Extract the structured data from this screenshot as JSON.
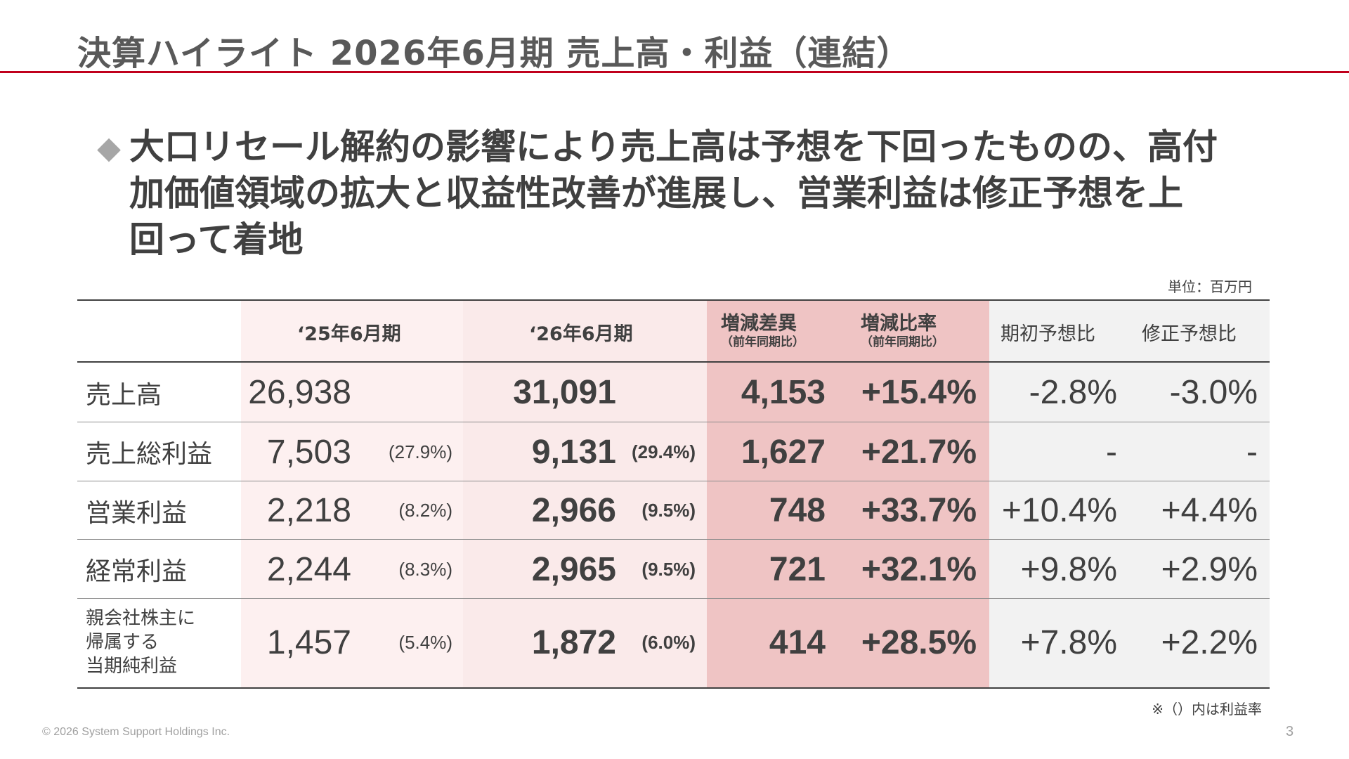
{
  "slide": {
    "title": "決算ハイライト 2026年6月期 売上高・利益（連結）",
    "headline_bullet": "◆",
    "headline_line1": "大口リセール解約の影響により売上高は予想を下回ったものの、高付",
    "headline_line2": "加価値領域の拡大と収益性改善が進展し、営業利益は修正予想を上",
    "headline_line3": "回って着地",
    "unit_note": "単位：百万円",
    "foot_note": "※（）内は利益率",
    "copyright": "© 2026 System Support Holdings Inc.",
    "page_number": "3",
    "accent_color": "#c0001c"
  },
  "table": {
    "headers": {
      "fy25": "‘25年6月期",
      "fy26": "‘26年6月期",
      "diff": "増減差異",
      "diff_sub": "（前年同期比）",
      "ratio": "増減比率",
      "ratio_sub": "（前年同期比）",
      "vs_initial": "期初予想比",
      "vs_revised": "修正予想比"
    },
    "rows": [
      {
        "label": "売上高",
        "fy25": "26,938",
        "fy25_margin": "",
        "fy26": "31,091",
        "fy26_margin": "",
        "diff": "4,153",
        "ratio": "+15.4%",
        "vs_initial": "-2.8%",
        "vs_revised": "-3.0%"
      },
      {
        "label": "売上総利益",
        "fy25": "7,503",
        "fy25_margin": "(27.9%)",
        "fy26": "9,131",
        "fy26_margin": "(29.4%)",
        "diff": "1,627",
        "ratio": "+21.7%",
        "vs_initial": "-",
        "vs_revised": "-"
      },
      {
        "label": "営業利益",
        "fy25": "2,218",
        "fy25_margin": "(8.2%)",
        "fy26": "2,966",
        "fy26_margin": "(9.5%)",
        "diff": "748",
        "ratio": "+33.7%",
        "vs_initial": "+10.4%",
        "vs_revised": "+4.4%"
      },
      {
        "label": "経常利益",
        "fy25": "2,244",
        "fy25_margin": "(8.3%)",
        "fy26": "2,965",
        "fy26_margin": "(9.5%)",
        "diff": "721",
        "ratio": "+32.1%",
        "vs_initial": "+9.8%",
        "vs_revised": "+2.9%"
      },
      {
        "label_line1": "親会社株主に",
        "label_line2": "帰属する",
        "label_line3": "当期純利益",
        "fy25": "1,457",
        "fy25_margin": "(5.4%)",
        "fy26": "1,872",
        "fy26_margin": "(6.0%)",
        "diff": "414",
        "ratio": "+28.5%",
        "vs_initial": "+7.8%",
        "vs_revised": "+2.2%"
      }
    ]
  }
}
